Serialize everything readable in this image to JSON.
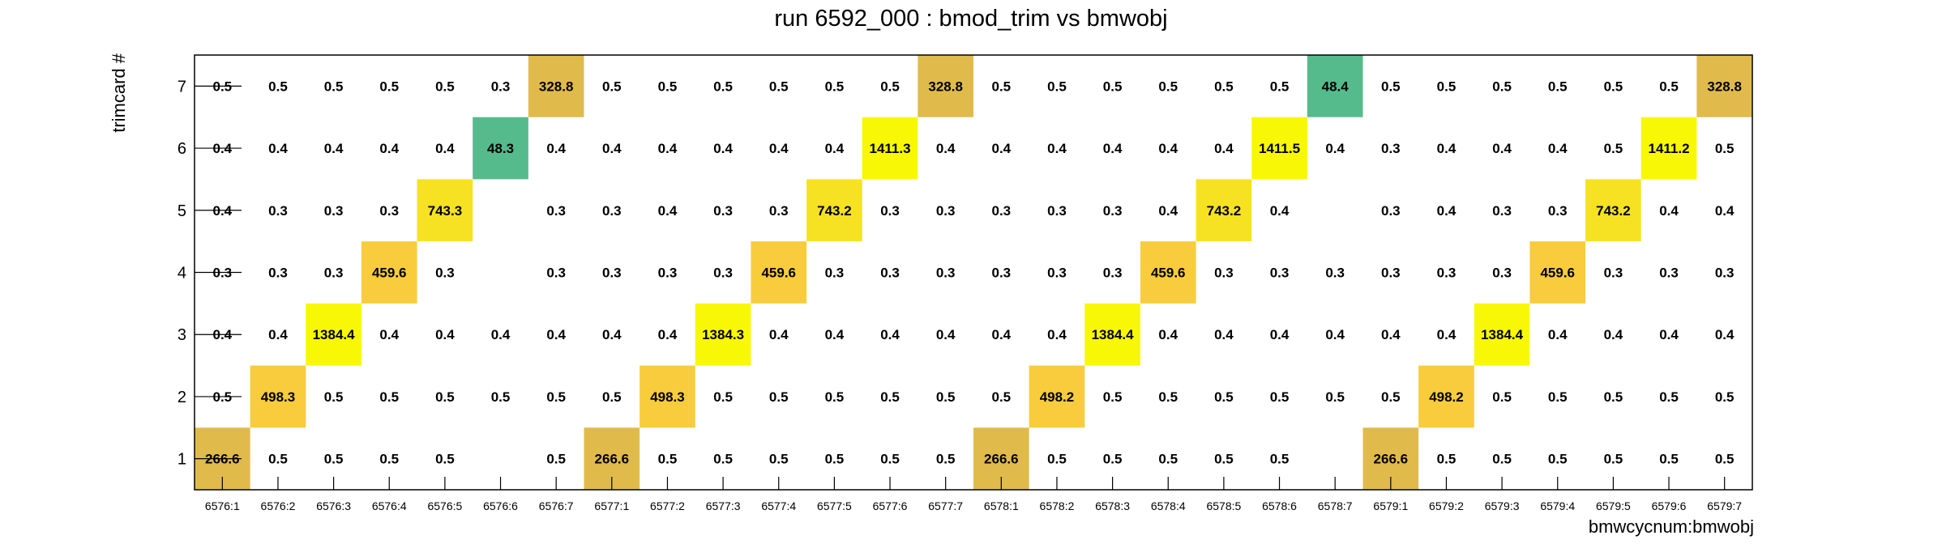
{
  "chart_data": {
    "type": "heatmap",
    "title": "run 6592_000 : bmod_trim vs bmwobj",
    "xlabel": "bmwcycnum:bmwobj",
    "ylabel": "trimcard #",
    "x_categories": [
      "6576:1",
      "6576:2",
      "6576:3",
      "6576:4",
      "6576:5",
      "6576:6",
      "6576:7",
      "6577:1",
      "6577:2",
      "6577:3",
      "6577:4",
      "6577:5",
      "6577:6",
      "6577:7",
      "6578:1",
      "6578:2",
      "6578:3",
      "6578:4",
      "6578:5",
      "6578:6",
      "6578:7",
      "6579:1",
      "6579:2",
      "6579:3",
      "6579:4",
      "6579:5",
      "6579:6",
      "6579:7"
    ],
    "y_categories": [
      "1",
      "2",
      "3",
      "4",
      "5",
      "6",
      "7"
    ],
    "grid": false,
    "colors": {
      "green": "#55bb8d",
      "gold_dark": "#e0bb4c",
      "gold": "#f8cc3c",
      "yellow_orange": "#f6e223",
      "yellow": "#f8f806",
      "frame": "#000000"
    },
    "values": [
      [
        "266.6",
        "0.5",
        "0.5",
        "0.5",
        "0.5",
        "",
        "0.5",
        "266.6",
        "0.5",
        "0.5",
        "0.5",
        "0.5",
        "0.5",
        "0.5",
        "266.6",
        "0.5",
        "0.5",
        "0.5",
        "0.5",
        "0.5",
        "",
        "266.6",
        "0.5",
        "0.5",
        "0.5",
        "0.5",
        "0.5",
        "0.5"
      ],
      [
        "0.5",
        "498.3",
        "0.5",
        "0.5",
        "0.5",
        "0.5",
        "0.5",
        "0.5",
        "498.3",
        "0.5",
        "0.5",
        "0.5",
        "0.5",
        "0.5",
        "0.5",
        "498.2",
        "0.5",
        "0.5",
        "0.5",
        "0.5",
        "0.5",
        "0.5",
        "498.2",
        "0.5",
        "0.5",
        "0.5",
        "0.5",
        "0.5"
      ],
      [
        "0.4",
        "0.4",
        "1384.4",
        "0.4",
        "0.4",
        "0.4",
        "0.4",
        "0.4",
        "0.4",
        "1384.3",
        "0.4",
        "0.4",
        "0.4",
        "0.4",
        "0.4",
        "0.4",
        "1384.4",
        "0.4",
        "0.4",
        "0.4",
        "0.4",
        "0.4",
        "0.4",
        "1384.4",
        "0.4",
        "0.4",
        "0.4",
        "0.4"
      ],
      [
        "0.3",
        "0.3",
        "0.3",
        "459.6",
        "0.3",
        "",
        "0.3",
        "0.3",
        "0.3",
        "0.3",
        "459.6",
        "0.3",
        "0.3",
        "0.3",
        "0.3",
        "0.3",
        "0.3",
        "459.6",
        "0.3",
        "0.3",
        "0.3",
        "0.3",
        "0.3",
        "0.3",
        "459.6",
        "0.3",
        "0.3",
        "0.3"
      ],
      [
        "0.4",
        "0.3",
        "0.3",
        "0.3",
        "743.3",
        "",
        "0.3",
        "0.3",
        "0.4",
        "0.3",
        "0.3",
        "743.2",
        "0.3",
        "0.3",
        "0.3",
        "0.3",
        "0.3",
        "0.4",
        "743.2",
        "0.4",
        "",
        "0.3",
        "0.4",
        "0.3",
        "0.3",
        "743.2",
        "0.4",
        "0.4"
      ],
      [
        "0.4",
        "0.4",
        "0.4",
        "0.4",
        "0.4",
        "48.3",
        "0.4",
        "0.4",
        "0.4",
        "0.4",
        "0.4",
        "0.4",
        "1411.3",
        "0.4",
        "0.4",
        "0.4",
        "0.4",
        "0.4",
        "0.4",
        "1411.5",
        "0.4",
        "0.3",
        "0.4",
        "0.4",
        "0.4",
        "0.5",
        "1411.2",
        "0.5"
      ],
      [
        "0.5",
        "0.5",
        "0.5",
        "0.5",
        "0.5",
        "0.3",
        "328.8",
        "0.5",
        "0.5",
        "0.5",
        "0.5",
        "0.5",
        "0.5",
        "328.8",
        "0.5",
        "0.5",
        "0.5",
        "0.5",
        "0.5",
        "0.5",
        "48.4",
        "0.5",
        "0.5",
        "0.5",
        "0.5",
        "0.5",
        "0.5",
        "328.8"
      ]
    ],
    "legend": "none"
  }
}
